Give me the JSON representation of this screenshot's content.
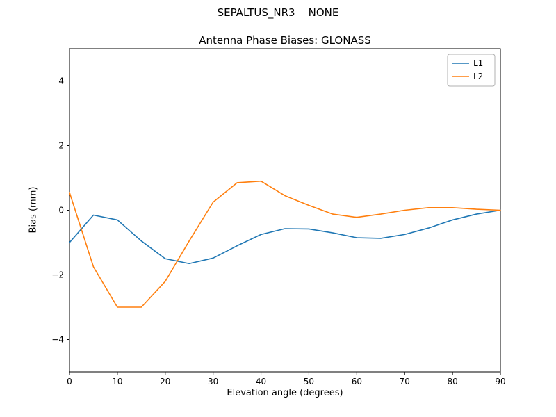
{
  "figure": {
    "suptitle": "SEPALTUS_NR3    NONE",
    "axes_title": "Antenna Phase Biases: GLONASS"
  },
  "chart_data": {
    "type": "line",
    "title": "Antenna Phase Biases: GLONASS",
    "xlabel": "Elevation angle (degrees)",
    "ylabel": "Bias (mm)",
    "xlim": [
      0,
      90
    ],
    "ylim": [
      -5,
      5
    ],
    "xticks": [
      0,
      10,
      20,
      30,
      40,
      50,
      60,
      70,
      80,
      90
    ],
    "yticks": [
      -4,
      -2,
      0,
      2,
      4
    ],
    "grid": false,
    "legend_position": "upper right",
    "x": [
      0,
      5,
      10,
      15,
      20,
      25,
      30,
      35,
      40,
      45,
      50,
      55,
      60,
      65,
      70,
      75,
      80,
      85,
      90
    ],
    "series": [
      {
        "name": "L1",
        "color": "#1f77b4",
        "values": [
          -1.0,
          -0.15,
          -0.3,
          -0.95,
          -1.5,
          -1.65,
          -1.48,
          -1.1,
          -0.75,
          -0.57,
          -0.58,
          -0.7,
          -0.85,
          -0.87,
          -0.75,
          -0.55,
          -0.3,
          -0.12,
          0.0
        ]
      },
      {
        "name": "L2",
        "color": "#ff7f0e",
        "values": [
          0.55,
          -1.75,
          -3.0,
          -3.0,
          -2.2,
          -0.95,
          0.25,
          0.85,
          0.9,
          0.45,
          0.15,
          -0.12,
          -0.22,
          -0.12,
          0.0,
          0.08,
          0.08,
          0.03,
          0.0
        ]
      }
    ]
  }
}
